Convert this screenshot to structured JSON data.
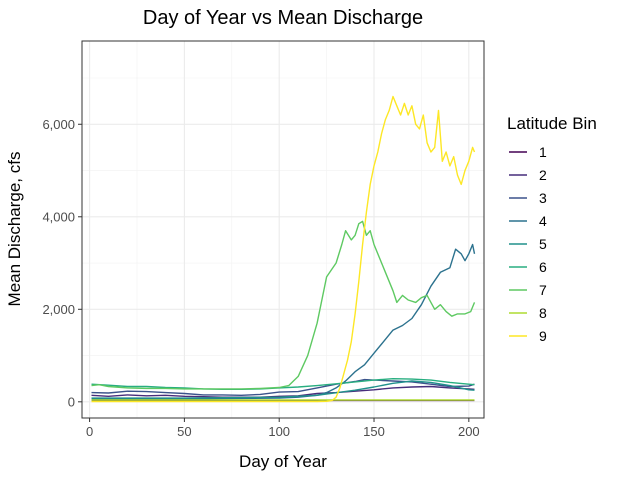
{
  "chart_data": {
    "type": "line",
    "title": "Day of Year vs Mean Discharge",
    "xlabel": "Day of Year",
    "ylabel": "Mean Discharge, cfs",
    "xlim": [
      -4,
      208
    ],
    "ylim": [
      -350,
      7800
    ],
    "x_ticks": [
      0,
      50,
      100,
      150,
      200
    ],
    "y_ticks": [
      0,
      2000,
      4000,
      6000
    ],
    "y_tick_labels": [
      "0",
      "2,000",
      "4,000",
      "6,000"
    ],
    "x_minor": [
      25,
      75,
      125,
      175
    ],
    "y_minor": [
      1000,
      3000,
      5000,
      7000
    ],
    "grid": true,
    "legend": {
      "title": "Latitude Bin",
      "position": "right"
    },
    "series": [
      {
        "name": "1",
        "color": "#440154",
        "points": [
          [
            1,
            30
          ],
          [
            50,
            30
          ],
          [
            100,
            30
          ],
          [
            150,
            30
          ],
          [
            203,
            30
          ]
        ]
      },
      {
        "name": "2",
        "color": "#472d7b",
        "points": [
          [
            1,
            140
          ],
          [
            10,
            120
          ],
          [
            20,
            150
          ],
          [
            30,
            130
          ],
          [
            40,
            140
          ],
          [
            50,
            120
          ],
          [
            60,
            110
          ],
          [
            70,
            100
          ],
          [
            80,
            100
          ],
          [
            90,
            100
          ],
          [
            100,
            120
          ],
          [
            110,
            130
          ],
          [
            120,
            180
          ],
          [
            130,
            200
          ],
          [
            140,
            230
          ],
          [
            150,
            260
          ],
          [
            160,
            300
          ],
          [
            170,
            320
          ],
          [
            180,
            330
          ],
          [
            190,
            300
          ],
          [
            200,
            280
          ],
          [
            203,
            270
          ]
        ]
      },
      {
        "name": "3",
        "color": "#3b528b",
        "points": [
          [
            1,
            200
          ],
          [
            10,
            190
          ],
          [
            20,
            230
          ],
          [
            30,
            220
          ],
          [
            40,
            200
          ],
          [
            50,
            180
          ],
          [
            60,
            150
          ],
          [
            70,
            150
          ],
          [
            80,
            140
          ],
          [
            90,
            160
          ],
          [
            100,
            210
          ],
          [
            110,
            220
          ],
          [
            120,
            300
          ],
          [
            130,
            380
          ],
          [
            140,
            440
          ],
          [
            145,
            480
          ],
          [
            150,
            470
          ],
          [
            160,
            450
          ],
          [
            170,
            430
          ],
          [
            180,
            380
          ],
          [
            190,
            330
          ],
          [
            200,
            340
          ],
          [
            203,
            380
          ]
        ]
      },
      {
        "name": "4",
        "color": "#2c728e",
        "points": [
          [
            1,
            60
          ],
          [
            50,
            60
          ],
          [
            100,
            80
          ],
          [
            110,
            100
          ],
          [
            120,
            140
          ],
          [
            125,
            200
          ],
          [
            130,
            300
          ],
          [
            135,
            450
          ],
          [
            140,
            650
          ],
          [
            145,
            800
          ],
          [
            150,
            1050
          ],
          [
            155,
            1300
          ],
          [
            160,
            1550
          ],
          [
            165,
            1650
          ],
          [
            170,
            1800
          ],
          [
            175,
            2100
          ],
          [
            180,
            2500
          ],
          [
            185,
            2800
          ],
          [
            190,
            2900
          ],
          [
            193,
            3300
          ],
          [
            196,
            3200
          ],
          [
            198,
            3050
          ],
          [
            200,
            3200
          ],
          [
            202,
            3400
          ],
          [
            203,
            3200
          ]
        ]
      },
      {
        "name": "5",
        "color": "#21918c",
        "points": [
          [
            1,
            80
          ],
          [
            50,
            80
          ],
          [
            100,
            100
          ],
          [
            120,
            140
          ],
          [
            140,
            250
          ],
          [
            150,
            320
          ],
          [
            160,
            400
          ],
          [
            170,
            450
          ],
          [
            180,
            420
          ],
          [
            190,
            350
          ],
          [
            200,
            260
          ],
          [
            203,
            250
          ]
        ]
      },
      {
        "name": "6",
        "color": "#28ae80",
        "points": [
          [
            1,
            380
          ],
          [
            10,
            360
          ],
          [
            20,
            330
          ],
          [
            30,
            330
          ],
          [
            40,
            310
          ],
          [
            50,
            300
          ],
          [
            60,
            280
          ],
          [
            70,
            270
          ],
          [
            80,
            270
          ],
          [
            90,
            280
          ],
          [
            100,
            300
          ],
          [
            110,
            320
          ],
          [
            120,
            350
          ],
          [
            130,
            390
          ],
          [
            140,
            430
          ],
          [
            150,
            470
          ],
          [
            160,
            500
          ],
          [
            170,
            490
          ],
          [
            180,
            470
          ],
          [
            190,
            420
          ],
          [
            200,
            380
          ],
          [
            203,
            370
          ]
        ]
      },
      {
        "name": "7",
        "color": "#5ec962",
        "points": [
          [
            1,
            350
          ],
          [
            5,
            370
          ],
          [
            10,
            330
          ],
          [
            20,
            300
          ],
          [
            30,
            290
          ],
          [
            40,
            290
          ],
          [
            50,
            280
          ],
          [
            60,
            280
          ],
          [
            70,
            280
          ],
          [
            80,
            280
          ],
          [
            90,
            290
          ],
          [
            100,
            310
          ],
          [
            105,
            350
          ],
          [
            110,
            550
          ],
          [
            115,
            1000
          ],
          [
            120,
            1700
          ],
          [
            125,
            2700
          ],
          [
            130,
            3000
          ],
          [
            133,
            3400
          ],
          [
            135,
            3700
          ],
          [
            138,
            3500
          ],
          [
            140,
            3600
          ],
          [
            142,
            3850
          ],
          [
            144,
            3900
          ],
          [
            146,
            3600
          ],
          [
            148,
            3700
          ],
          [
            150,
            3400
          ],
          [
            153,
            3100
          ],
          [
            156,
            2800
          ],
          [
            160,
            2400
          ],
          [
            162,
            2150
          ],
          [
            165,
            2300
          ],
          [
            168,
            2200
          ],
          [
            172,
            2150
          ],
          [
            175,
            2250
          ],
          [
            178,
            2300
          ],
          [
            182,
            2000
          ],
          [
            185,
            2100
          ],
          [
            188,
            1950
          ],
          [
            191,
            1850
          ],
          [
            194,
            1900
          ],
          [
            198,
            1900
          ],
          [
            201,
            1950
          ],
          [
            203,
            2150
          ]
        ]
      },
      {
        "name": "8",
        "color": "#addc30",
        "points": [
          [
            1,
            40
          ],
          [
            50,
            40
          ],
          [
            100,
            40
          ],
          [
            150,
            40
          ],
          [
            203,
            40
          ]
        ]
      },
      {
        "name": "9",
        "color": "#fde725",
        "points": [
          [
            1,
            5
          ],
          [
            50,
            5
          ],
          [
            100,
            5
          ],
          [
            120,
            5
          ],
          [
            125,
            10
          ],
          [
            128,
            30
          ],
          [
            130,
            100
          ],
          [
            132,
            300
          ],
          [
            134,
            600
          ],
          [
            136,
            900
          ],
          [
            138,
            1300
          ],
          [
            140,
            1900
          ],
          [
            142,
            2600
          ],
          [
            144,
            3400
          ],
          [
            146,
            4100
          ],
          [
            148,
            4700
          ],
          [
            150,
            5100
          ],
          [
            152,
            5400
          ],
          [
            154,
            5800
          ],
          [
            156,
            6100
          ],
          [
            158,
            6300
          ],
          [
            160,
            6600
          ],
          [
            162,
            6400
          ],
          [
            164,
            6200
          ],
          [
            166,
            6450
          ],
          [
            168,
            6200
          ],
          [
            170,
            6400
          ],
          [
            172,
            6000
          ],
          [
            174,
            5900
          ],
          [
            176,
            6200
          ],
          [
            178,
            5600
          ],
          [
            180,
            5400
          ],
          [
            182,
            5500
          ],
          [
            184,
            6300
          ],
          [
            186,
            5200
          ],
          [
            188,
            5400
          ],
          [
            190,
            5100
          ],
          [
            192,
            5300
          ],
          [
            194,
            4900
          ],
          [
            196,
            4700
          ],
          [
            198,
            5000
          ],
          [
            200,
            5200
          ],
          [
            202,
            5500
          ],
          [
            203,
            5400
          ]
        ]
      }
    ]
  }
}
